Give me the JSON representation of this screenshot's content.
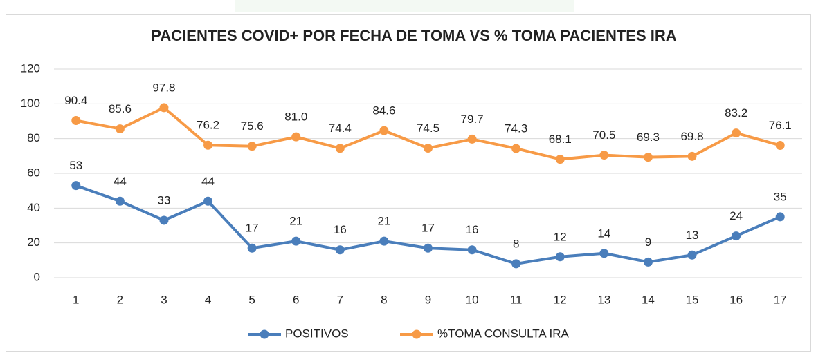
{
  "chart_data": {
    "type": "line",
    "title": "PACIENTES COVID+ POR FECHA DE TOMA VS % TOMA PACIENTES IRA",
    "categories": [
      "1",
      "2",
      "3",
      "4",
      "5",
      "6",
      "7",
      "8",
      "9",
      "10",
      "11",
      "12",
      "13",
      "14",
      "15",
      "16",
      "17"
    ],
    "series": [
      {
        "name": "POSITIVOS",
        "color": "#4a7ebb",
        "values": [
          53,
          44,
          33,
          44,
          17,
          21,
          16,
          21,
          17,
          16,
          8,
          12,
          14,
          9,
          13,
          24,
          35
        ]
      },
      {
        "name": "%TOMA CONSULTA IRA",
        "color": "#f79a46",
        "values": [
          90.4,
          85.6,
          97.8,
          76.2,
          75.6,
          81.0,
          74.4,
          84.6,
          74.5,
          79.7,
          74.3,
          68.1,
          70.5,
          69.3,
          69.8,
          83.2,
          76.1
        ],
        "value_labels": [
          "90.4",
          "85.6",
          "97.8",
          "76.2",
          "75.6",
          "81.0",
          "74.4",
          "84.6",
          "74.5",
          "79.7",
          "74.3",
          "68.1",
          "70.5",
          "69.3",
          "69.8",
          "83.2",
          "76.1"
        ]
      }
    ],
    "ylim": [
      0,
      120
    ],
    "yticks": [
      0,
      20,
      40,
      60,
      80,
      100,
      120
    ],
    "grid": true,
    "legend": "bottom"
  }
}
